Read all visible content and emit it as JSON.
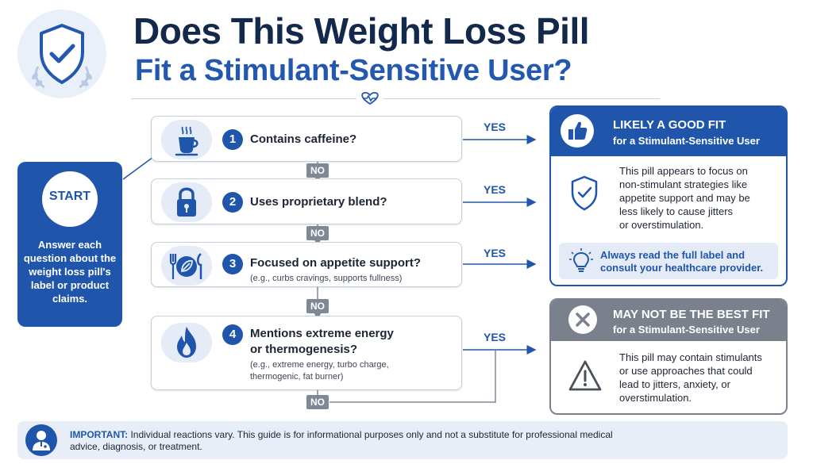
{
  "header": {
    "title_line1": "Does This Weight Loss Pill",
    "title_line2": "Fit a Stimulant-Sensitive User?"
  },
  "start": {
    "label": "START",
    "text": "Answer each question about the weight loss pill's label or product claims."
  },
  "questions": [
    {
      "number": "1",
      "text": "Contains caffeine?",
      "icon": "coffee-cup-icon"
    },
    {
      "number": "2",
      "text": "Uses proprietary blend?",
      "icon": "padlock-icon"
    },
    {
      "number": "3",
      "text": "Focused on appetite support?",
      "sub": "(e.g., curbs cravings, supports fullness)",
      "icon": "plate-leaf-icon"
    },
    {
      "number": "4",
      "text_line1": "Mentions extreme energy",
      "text_line2": "or thermogenesis?",
      "sub_line1": "(e.g., extreme energy, turbo charge,",
      "sub_line2": "thermogenic, fat burner)",
      "icon": "flame-icon"
    }
  ],
  "yes_label": "YES",
  "no_label": "NO",
  "result_good": {
    "title": "LIKELY A GOOD FIT",
    "subtitle": "for a Stimulant-Sensitive User",
    "body_lines": [
      "This pill appears to focus on",
      "non-stimulant strategies like",
      "appetite support and may be",
      "less likely to cause jitters",
      "or overstimulation."
    ],
    "tip_line1": "Always read the full label and",
    "tip_line2": "consult your healthcare provider."
  },
  "result_bad": {
    "title": "MAY NOT BE THE BEST FIT",
    "subtitle": "for a Stimulant-Sensitive User",
    "body_lines": [
      "This pill may contain stimulants",
      "or use approaches that could",
      "lead to jitters, anxiety, or",
      "overstimulation."
    ]
  },
  "footer": {
    "label": "IMPORTANT:",
    "text": "Individual reactions vary. This guide is for informational purposes only and not a substitute for professional medical advice, diagnosis, or treatment."
  },
  "colors": {
    "primary": "#1f56ab",
    "navy": "#13294b",
    "gray": "#7b818c",
    "light_blue": "#e5ecf8"
  }
}
